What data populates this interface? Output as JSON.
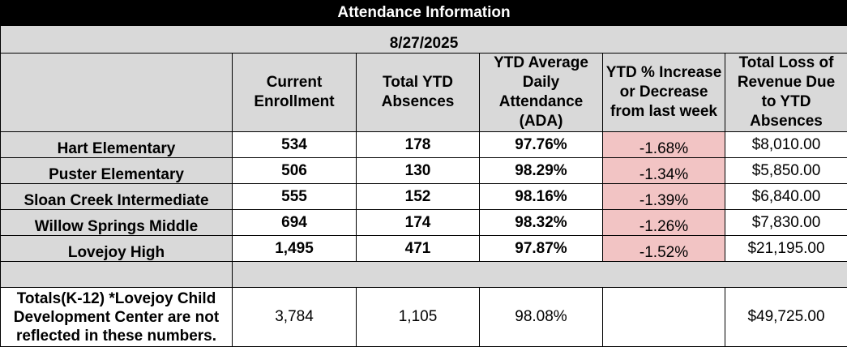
{
  "title": "Attendance Information",
  "date": "8/27/2025",
  "headers": {
    "enrollment": "Current Enrollment",
    "absences": "Total YTD Absences",
    "ada": "YTD Average Daily Attendance (ADA)",
    "pct_change": "YTD % Increase or Decrease from last week",
    "revenue_loss": "Total Loss of Revenue Due to YTD Absences"
  },
  "rows": [
    {
      "school": "Hart Elementary",
      "enrollment": "534",
      "absences": "178",
      "ada": "97.76%",
      "pct_change": "-1.68%",
      "revenue_loss": "$8,010.00"
    },
    {
      "school": "Puster Elementary",
      "enrollment": "506",
      "absences": "130",
      "ada": "98.29%",
      "pct_change": "-1.34%",
      "revenue_loss": "$5,850.00"
    },
    {
      "school": "Sloan Creek Intermediate",
      "enrollment": "555",
      "absences": "152",
      "ada": "98.16%",
      "pct_change": "-1.39%",
      "revenue_loss": "$6,840.00"
    },
    {
      "school": "Willow Springs Middle",
      "enrollment": "694",
      "absences": "174",
      "ada": "98.32%",
      "pct_change": "-1.26%",
      "revenue_loss": "$7,830.00"
    },
    {
      "school": "Lovejoy High",
      "enrollment": "1,495",
      "absences": "471",
      "ada": "97.87%",
      "pct_change": "-1.52%",
      "revenue_loss": "$21,195.00"
    }
  ],
  "totals": {
    "label": "Totals(K-12) *Lovejoy Child Development Center are not reflected in these numbers.",
    "enrollment": "3,784",
    "absences": "1,105",
    "ada": "98.08%",
    "pct_change": "",
    "revenue_loss": "$49,725.00"
  },
  "colors": {
    "title_bg": "#000000",
    "header_bg": "#d9d9d9",
    "decrease_highlight": "#f2c4c4"
  }
}
